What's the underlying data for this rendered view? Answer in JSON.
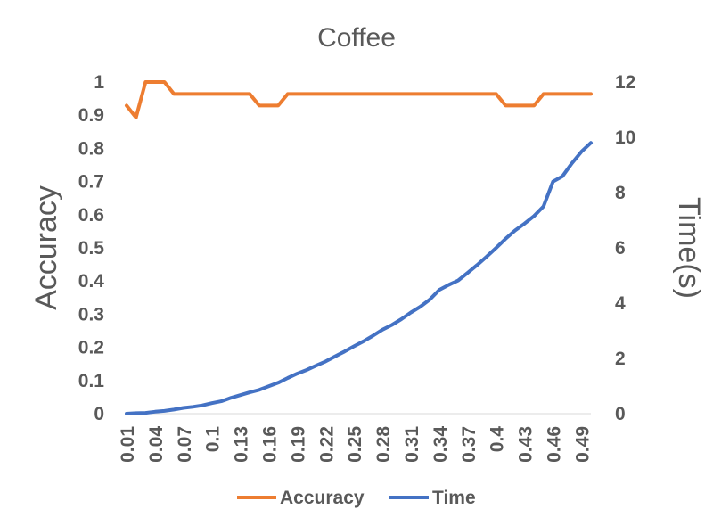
{
  "chart_data": {
    "type": "line",
    "title": "Coffee",
    "ylabel": "Accuracy",
    "y2label": "Time(s)",
    "xlabel": "",
    "x": [
      0.01,
      0.02,
      0.03,
      0.04,
      0.05,
      0.06,
      0.07,
      0.08,
      0.09,
      0.1,
      0.11,
      0.12,
      0.13,
      0.14,
      0.15,
      0.16,
      0.17,
      0.18,
      0.19,
      0.2,
      0.21,
      0.22,
      0.23,
      0.24,
      0.25,
      0.26,
      0.27,
      0.28,
      0.29,
      0.3,
      0.31,
      0.32,
      0.33,
      0.34,
      0.35,
      0.36,
      0.37,
      0.38,
      0.39,
      0.4,
      0.41,
      0.42,
      0.43,
      0.44,
      0.45,
      0.46,
      0.47,
      0.48,
      0.49,
      0.5
    ],
    "xtick_labels": [
      "0.01",
      "0.04",
      "0.07",
      "0.1",
      "0.13",
      "0.16",
      "0.19",
      "0.22",
      "0.25",
      "0.28",
      "0.31",
      "0.34",
      "0.37",
      "0.4",
      "0.43",
      "0.46",
      "0.49"
    ],
    "ylim": [
      0,
      1
    ],
    "yticks": [
      "0",
      "0.1",
      "0.2",
      "0.3",
      "0.4",
      "0.5",
      "0.6",
      "0.7",
      "0.8",
      "0.9",
      "1"
    ],
    "y2lim": [
      0,
      12
    ],
    "y2ticks": [
      "0",
      "2",
      "4",
      "6",
      "8",
      "10",
      "12"
    ],
    "grid": false,
    "legend_position": "bottom",
    "series": [
      {
        "name": "Accuracy",
        "axis": "left",
        "color": "#ED7D31",
        "values": [
          0.929,
          0.893,
          1.0,
          1.0,
          1.0,
          0.964,
          0.964,
          0.964,
          0.964,
          0.964,
          0.964,
          0.964,
          0.964,
          0.964,
          0.929,
          0.929,
          0.929,
          0.964,
          0.964,
          0.964,
          0.964,
          0.964,
          0.964,
          0.964,
          0.964,
          0.964,
          0.964,
          0.964,
          0.964,
          0.964,
          0.964,
          0.964,
          0.964,
          0.964,
          0.964,
          0.964,
          0.964,
          0.964,
          0.964,
          0.964,
          0.929,
          0.929,
          0.929,
          0.929,
          0.964,
          0.964,
          0.964,
          0.964,
          0.964,
          0.964
        ]
      },
      {
        "name": "Time",
        "axis": "right",
        "color": "#4472C4",
        "values": [
          0.0,
          0.02,
          0.03,
          0.07,
          0.1,
          0.15,
          0.21,
          0.25,
          0.3,
          0.38,
          0.45,
          0.57,
          0.67,
          0.77,
          0.86,
          0.99,
          1.12,
          1.29,
          1.45,
          1.58,
          1.74,
          1.89,
          2.07,
          2.25,
          2.44,
          2.62,
          2.82,
          3.04,
          3.21,
          3.42,
          3.66,
          3.87,
          4.13,
          4.48,
          4.66,
          4.82,
          5.1,
          5.38,
          5.68,
          6.0,
          6.33,
          6.63,
          6.88,
          7.15,
          7.5,
          8.4,
          8.59,
          9.06,
          9.48,
          9.8
        ]
      }
    ]
  }
}
